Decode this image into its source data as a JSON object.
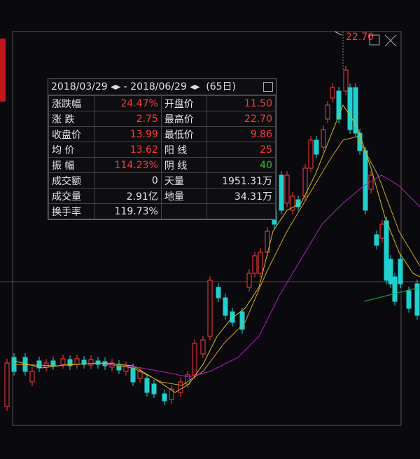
{
  "header": {
    "start": "2018/03/29",
    "end": "2018/06/29",
    "days": "(65日)"
  },
  "rows": [
    [
      "涨跌幅",
      "24.47%",
      "开盘价",
      "11.50"
    ],
    [
      "涨 跌",
      "2.75",
      "最高价",
      "22.70"
    ],
    [
      "收盘价",
      "13.99",
      "最低价",
      "9.86"
    ],
    [
      "均 价",
      "13.62",
      "阳 线",
      "25"
    ],
    [
      "振 幅",
      "114.23%",
      "阴 线",
      "40"
    ],
    [
      "成交额",
      "0",
      "天量",
      "1951.31万"
    ],
    [
      "成交量",
      "2.91亿",
      "地量",
      "34.31万"
    ],
    [
      "换手率",
      "119.73%",
      "",
      ""
    ]
  ],
  "high_marker": "22.70"
}
